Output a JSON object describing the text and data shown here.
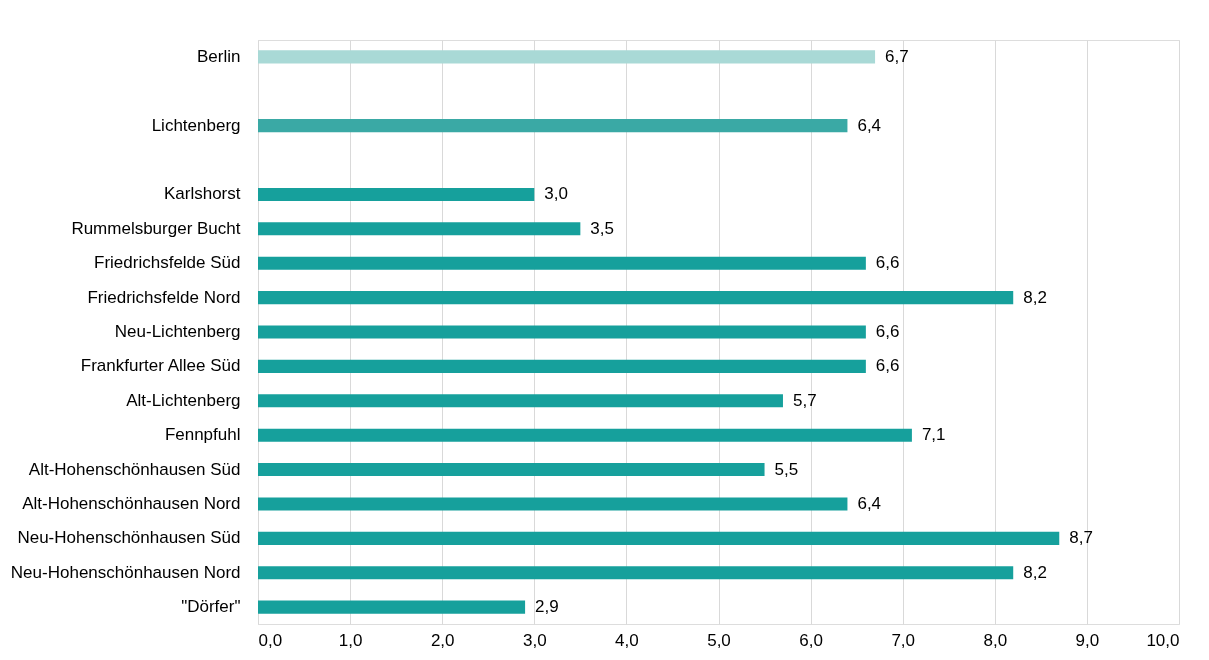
{
  "chart_data": {
    "type": "bar",
    "orientation": "horizontal",
    "categories": [
      "Berlin",
      null,
      "Lichtenberg",
      null,
      "Karlshorst",
      "Rummelsburger Bucht",
      "Friedrichsfelde Süd",
      "Friedrichsfelde Nord",
      "Neu-Lichtenberg",
      "Frankfurter Allee Süd",
      "Alt-Lichtenberg",
      "Fennpfuhl",
      "Alt-Hohenschönhausen Süd",
      "Alt-Hohenschönhausen Nord",
      "Neu-Hohenschönhausen Süd",
      "Neu-Hohenschönhausen Nord",
      "\"Dörfer\""
    ],
    "values": [
      6.7,
      null,
      6.4,
      null,
      3.0,
      3.5,
      6.6,
      8.2,
      6.6,
      6.6,
      5.7,
      7.1,
      5.5,
      6.4,
      8.7,
      8.2,
      2.9
    ],
    "value_labels": [
      "6,7",
      null,
      "6,4",
      null,
      "3,0",
      "3,5",
      "6,6",
      "8,2",
      "6,6",
      "6,6",
      "5,7",
      "7,1",
      "5,5",
      "6,4",
      "8,7",
      "8,2",
      "2,9"
    ],
    "colors": [
      "#a9d9d6",
      null,
      "#3aa9a5",
      null,
      "#16a09c",
      "#16a09c",
      "#16a09c",
      "#16a09c",
      "#16a09c",
      "#16a09c",
      "#16a09c",
      "#16a09c",
      "#16a09c",
      "#16a09c",
      "#16a09c",
      "#16a09c",
      "#16a09c"
    ],
    "xlim": [
      0,
      10
    ],
    "xticks": [
      {
        "value": 0,
        "label": "0,0"
      },
      {
        "value": 1,
        "label": "1,0"
      },
      {
        "value": 2,
        "label": "2,0"
      },
      {
        "value": 3,
        "label": "3,0"
      },
      {
        "value": 4,
        "label": "4,0"
      },
      {
        "value": 5,
        "label": "5,0"
      },
      {
        "value": 6,
        "label": "6,0"
      },
      {
        "value": 7,
        "label": "7,0"
      },
      {
        "value": 8,
        "label": "8,0"
      },
      {
        "value": 9,
        "label": "9,0"
      },
      {
        "value": 10,
        "label": "10,0"
      }
    ],
    "grid": "x"
  }
}
